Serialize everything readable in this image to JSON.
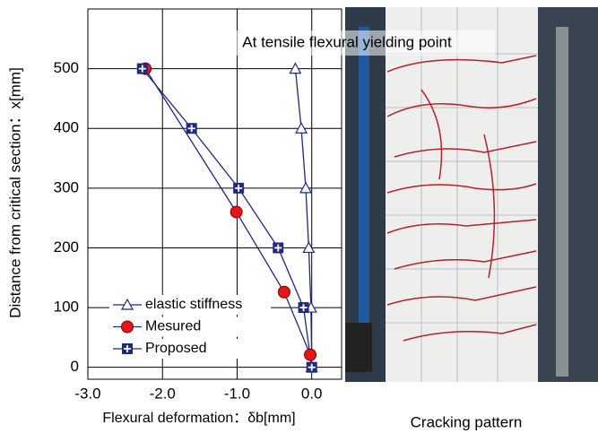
{
  "chart_data": {
    "type": "line",
    "title": "At tensile flexural yielding point",
    "x_label": "Flexural deformation：δb[mm]",
    "y_label": "Distance from critical section：x[mm]",
    "caption": "Cracking pattern",
    "xlim": [
      -3.0,
      0.4
    ],
    "ylim": [
      -20,
      600
    ],
    "xticks": [
      {
        "value": -3,
        "label": "-3.0"
      },
      {
        "value": -2,
        "label": "-2.0"
      },
      {
        "value": -1,
        "label": "-1.0"
      },
      {
        "value": 0,
        "label": "0.0"
      }
    ],
    "yticks": [
      0,
      100,
      200,
      300,
      400,
      500
    ],
    "grid": true,
    "legend": "lower left",
    "series": [
      {
        "name": "elastic stiffness",
        "color": "#1f2a7a",
        "marker": "triangle",
        "x": [
          -0.22,
          -0.14,
          -0.08,
          -0.04,
          -0.01,
          0.0
        ],
        "values": [
          500,
          400,
          300,
          200,
          100,
          0
        ]
      },
      {
        "name": "Mesured",
        "color": "#1f2a7a",
        "marker": "circle",
        "x": [
          -2.23,
          -1.01,
          -0.37,
          -0.02
        ],
        "values": [
          500,
          260,
          126,
          21
        ]
      },
      {
        "name": "Proposed",
        "color": "#1f2a7a",
        "marker": "square",
        "x": [
          -2.27,
          -1.61,
          -0.98,
          -0.45,
          -0.11,
          0.0
        ],
        "values": [
          500,
          400,
          300,
          200,
          100,
          0
        ]
      }
    ]
  }
}
